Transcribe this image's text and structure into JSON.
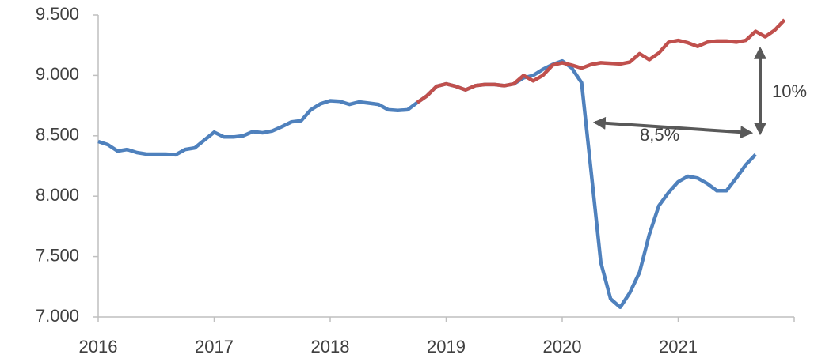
{
  "chart_data": {
    "type": "line",
    "annotations": [
      "10%",
      "8,5%"
    ],
    "xlim": [
      2016,
      2022
    ],
    "xticks": [
      2016,
      2017,
      2018,
      2019,
      2020,
      2021
    ],
    "ylim": [
      7000,
      9500
    ],
    "yticks": [
      {
        "value": 7000,
        "label": "7.000"
      },
      {
        "value": 7500,
        "label": "7.500"
      },
      {
        "value": 8000,
        "label": "8.000"
      },
      {
        "value": 8500,
        "label": "8.500"
      },
      {
        "value": 9000,
        "label": "9.000"
      },
      {
        "value": 9500,
        "label": "9.500"
      }
    ],
    "series": [
      {
        "color": "#4f81bd",
        "x": [
          2016,
          2016.083,
          2016.167,
          2016.25,
          2016.333,
          2016.417,
          2016.5,
          2016.583,
          2016.667,
          2016.75,
          2016.833,
          2016.917,
          2017,
          2017.083,
          2017.167,
          2017.25,
          2017.333,
          2017.417,
          2017.5,
          2017.583,
          2017.667,
          2017.75,
          2017.833,
          2017.917,
          2018,
          2018.083,
          2018.167,
          2018.25,
          2018.333,
          2018.417,
          2018.5,
          2018.583,
          2018.667,
          2018.75,
          2018.833,
          2018.917,
          2019,
          2019.083,
          2019.167,
          2019.25,
          2019.333,
          2019.417,
          2019.5,
          2019.583,
          2019.667,
          2019.75,
          2019.833,
          2019.917,
          2020,
          2020.083,
          2020.167,
          2020.25,
          2020.333,
          2020.417,
          2020.5,
          2020.583,
          2020.667,
          2020.75,
          2020.833,
          2020.917,
          2021,
          2021.083,
          2021.167,
          2021.25,
          2021.333,
          2021.417,
          2021.5,
          2021.583,
          2021.667
        ],
        "values": [
          8453,
          8427,
          8374,
          8387,
          8361,
          8348,
          8348,
          8348,
          8342,
          8387,
          8400,
          8466,
          8530,
          8490,
          8490,
          8500,
          8535,
          8525,
          8540,
          8575,
          8615,
          8625,
          8715,
          8765,
          8790,
          8785,
          8760,
          8780,
          8770,
          8760,
          8715,
          8710,
          8715,
          8775,
          8830,
          8910,
          8930,
          8910,
          8880,
          8915,
          8925,
          8925,
          8915,
          8930,
          8980,
          9000,
          9050,
          9090,
          9120,
          9060,
          8940,
          8200,
          7450,
          7150,
          7080,
          7200,
          7370,
          7680,
          7920,
          8030,
          8120,
          8165,
          8150,
          8105,
          8045,
          8045,
          8150,
          8260,
          8345
        ]
      },
      {
        "color": "#c0504d",
        "x": [
          2018.75,
          2018.833,
          2018.917,
          2019,
          2019.083,
          2019.167,
          2019.25,
          2019.333,
          2019.417,
          2019.5,
          2019.583,
          2019.667,
          2019.75,
          2019.833,
          2019.917,
          2020,
          2020.083,
          2020.167,
          2020.25,
          2020.333,
          2020.417,
          2020.5,
          2020.583,
          2020.667,
          2020.75,
          2020.833,
          2020.917,
          2021,
          2021.083,
          2021.167,
          2021.25,
          2021.333,
          2021.417,
          2021.5,
          2021.583,
          2021.667,
          2021.75,
          2021.833,
          2021.917
        ],
        "values": [
          8775,
          8830,
          8910,
          8930,
          8910,
          8880,
          8915,
          8925,
          8925,
          8915,
          8930,
          9000,
          8955,
          9000,
          9085,
          9105,
          9085,
          9060,
          9090,
          9105,
          9100,
          9095,
          9110,
          9180,
          9130,
          9185,
          9275,
          9290,
          9270,
          9240,
          9275,
          9285,
          9285,
          9275,
          9290,
          9365,
          9320,
          9375,
          9460
        ]
      }
    ]
  }
}
